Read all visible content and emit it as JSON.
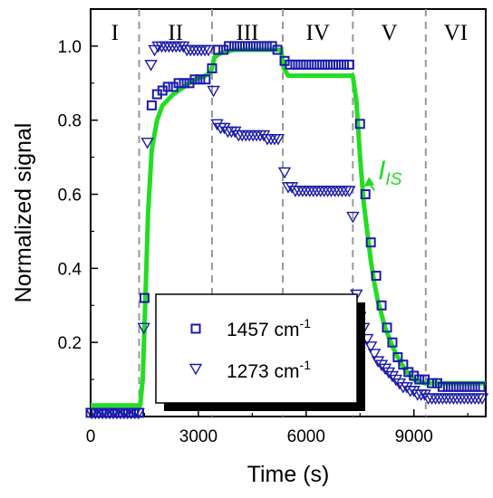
{
  "chart_data": {
    "type": "scatter",
    "xlabel": "Time (s)",
    "ylabel": "Normalized signal",
    "xlim": [
      0,
      11000
    ],
    "ylim": [
      0,
      1.1
    ],
    "xticks": [
      0,
      3000,
      6000,
      9000
    ],
    "yticks": [
      0.2,
      0.4,
      0.6,
      0.8,
      1.0
    ],
    "xtick_labels": [
      "0",
      "3000",
      "6000",
      "9000"
    ],
    "ytick_labels": [
      "0.2",
      "0.4",
      "0.6",
      "0.8",
      "1.0"
    ],
    "grid": false,
    "regions": {
      "boundaries": [
        1350,
        3380,
        5350,
        7300,
        9330
      ],
      "labels": [
        "I",
        "II",
        "III",
        "IV",
        "V",
        "VI"
      ]
    },
    "series": [
      {
        "name": "1457 cm",
        "superscript": "-1",
        "marker": "square",
        "color": "#1a1aaa",
        "points": [
          [
            0,
            0.01
          ],
          [
            150,
            0.01
          ],
          [
            300,
            0.01
          ],
          [
            450,
            0.01
          ],
          [
            600,
            0.01
          ],
          [
            750,
            0.01
          ],
          [
            900,
            0.01
          ],
          [
            1050,
            0.01
          ],
          [
            1200,
            0.01
          ],
          [
            1350,
            0.01
          ],
          [
            1500,
            0.32
          ],
          [
            1700,
            0.84
          ],
          [
            1850,
            0.87
          ],
          [
            2000,
            0.88
          ],
          [
            2150,
            0.89
          ],
          [
            2300,
            0.89
          ],
          [
            2450,
            0.9
          ],
          [
            2600,
            0.9
          ],
          [
            2750,
            0.9
          ],
          [
            2900,
            0.91
          ],
          [
            3050,
            0.91
          ],
          [
            3200,
            0.91
          ],
          [
            3380,
            0.94
          ],
          [
            3550,
            0.99
          ],
          [
            3700,
            0.99
          ],
          [
            3850,
            1.0
          ],
          [
            4000,
            1.0
          ],
          [
            4150,
            1.0
          ],
          [
            4300,
            1.0
          ],
          [
            4450,
            1.0
          ],
          [
            4600,
            1.0
          ],
          [
            4750,
            1.0
          ],
          [
            4900,
            1.0
          ],
          [
            5050,
            1.0
          ],
          [
            5200,
            0.99
          ],
          [
            5400,
            0.96
          ],
          [
            5550,
            0.95
          ],
          [
            5700,
            0.95
          ],
          [
            5850,
            0.95
          ],
          [
            6000,
            0.95
          ],
          [
            6150,
            0.95
          ],
          [
            6300,
            0.95
          ],
          [
            6450,
            0.95
          ],
          [
            6600,
            0.95
          ],
          [
            6750,
            0.95
          ],
          [
            6900,
            0.95
          ],
          [
            7050,
            0.95
          ],
          [
            7200,
            0.95
          ],
          [
            7500,
            0.79
          ],
          [
            7650,
            0.6
          ],
          [
            7800,
            0.47
          ],
          [
            7950,
            0.38
          ],
          [
            8100,
            0.3
          ],
          [
            8250,
            0.24
          ],
          [
            8400,
            0.2
          ],
          [
            8550,
            0.16
          ],
          [
            8700,
            0.14
          ],
          [
            8850,
            0.12
          ],
          [
            9000,
            0.11
          ],
          [
            9150,
            0.1
          ],
          [
            9300,
            0.1
          ],
          [
            9500,
            0.09
          ],
          [
            9650,
            0.09
          ],
          [
            9800,
            0.08
          ],
          [
            9950,
            0.08
          ],
          [
            10100,
            0.08
          ],
          [
            10250,
            0.08
          ],
          [
            10400,
            0.08
          ],
          [
            10550,
            0.08
          ],
          [
            10700,
            0.08
          ],
          [
            10850,
            0.08
          ]
        ]
      },
      {
        "name": "1273 cm",
        "superscript": "-1",
        "marker": "triangle-down",
        "color": "#1a1aaa",
        "points": [
          [
            30,
            0.01
          ],
          [
            130,
            0.01
          ],
          [
            230,
            0.01
          ],
          [
            330,
            0.01
          ],
          [
            430,
            0.01
          ],
          [
            530,
            0.01
          ],
          [
            630,
            0.01
          ],
          [
            730,
            0.01
          ],
          [
            830,
            0.01
          ],
          [
            930,
            0.01
          ],
          [
            1030,
            0.01
          ],
          [
            1130,
            0.01
          ],
          [
            1230,
            0.01
          ],
          [
            1330,
            0.01
          ],
          [
            1480,
            0.24
          ],
          [
            1580,
            0.74
          ],
          [
            1680,
            0.95
          ],
          [
            1780,
            0.99
          ],
          [
            1880,
            1.0
          ],
          [
            1980,
            1.0
          ],
          [
            2080,
            1.0
          ],
          [
            2180,
            1.0
          ],
          [
            2280,
            1.0
          ],
          [
            2380,
            1.0
          ],
          [
            2480,
            1.0
          ],
          [
            2580,
            1.0
          ],
          [
            2680,
            0.99
          ],
          [
            2780,
            0.99
          ],
          [
            2880,
            0.99
          ],
          [
            2980,
            0.99
          ],
          [
            3080,
            0.99
          ],
          [
            3180,
            0.99
          ],
          [
            3280,
            0.99
          ],
          [
            3420,
            0.88
          ],
          [
            3520,
            0.79
          ],
          [
            3620,
            0.78
          ],
          [
            3720,
            0.78
          ],
          [
            3820,
            0.77
          ],
          [
            3920,
            0.77
          ],
          [
            4020,
            0.77
          ],
          [
            4120,
            0.76
          ],
          [
            4220,
            0.76
          ],
          [
            4320,
            0.76
          ],
          [
            4420,
            0.76
          ],
          [
            4520,
            0.76
          ],
          [
            4620,
            0.76
          ],
          [
            4720,
            0.76
          ],
          [
            4820,
            0.76
          ],
          [
            4920,
            0.75
          ],
          [
            5020,
            0.75
          ],
          [
            5120,
            0.75
          ],
          [
            5220,
            0.75
          ],
          [
            5400,
            0.66
          ],
          [
            5500,
            0.62
          ],
          [
            5600,
            0.62
          ],
          [
            5700,
            0.61
          ],
          [
            5800,
            0.61
          ],
          [
            5900,
            0.61
          ],
          [
            6000,
            0.61
          ],
          [
            6100,
            0.61
          ],
          [
            6200,
            0.61
          ],
          [
            6300,
            0.61
          ],
          [
            6400,
            0.61
          ],
          [
            6500,
            0.61
          ],
          [
            6600,
            0.61
          ],
          [
            6700,
            0.61
          ],
          [
            6800,
            0.61
          ],
          [
            6900,
            0.61
          ],
          [
            7000,
            0.61
          ],
          [
            7100,
            0.61
          ],
          [
            7200,
            0.61
          ],
          [
            7300,
            0.54
          ],
          [
            7400,
            0.33
          ],
          [
            7500,
            0.27
          ],
          [
            7600,
            0.24
          ],
          [
            7700,
            0.21
          ],
          [
            7800,
            0.19
          ],
          [
            7900,
            0.17
          ],
          [
            8000,
            0.15
          ],
          [
            8100,
            0.14
          ],
          [
            8200,
            0.13
          ],
          [
            8300,
            0.12
          ],
          [
            8400,
            0.11
          ],
          [
            8500,
            0.1
          ],
          [
            8600,
            0.09
          ],
          [
            8700,
            0.08
          ],
          [
            8800,
            0.08
          ],
          [
            8900,
            0.07
          ],
          [
            9000,
            0.07
          ],
          [
            9100,
            0.06
          ],
          [
            9200,
            0.06
          ],
          [
            9300,
            0.06
          ],
          [
            9400,
            0.05
          ],
          [
            9500,
            0.05
          ],
          [
            9600,
            0.05
          ],
          [
            9700,
            0.05
          ],
          [
            9800,
            0.05
          ],
          [
            9900,
            0.05
          ],
          [
            10000,
            0.05
          ],
          [
            10100,
            0.05
          ],
          [
            10200,
            0.05
          ],
          [
            10300,
            0.05
          ],
          [
            10400,
            0.05
          ],
          [
            10500,
            0.05
          ],
          [
            10600,
            0.05
          ],
          [
            10700,
            0.05
          ],
          [
            10800,
            0.05
          ],
          [
            10900,
            0.05
          ]
        ]
      },
      {
        "name": "I",
        "subscript": "IS",
        "type": "line",
        "color": "#22dd22",
        "points": [
          [
            0,
            0.03
          ],
          [
            500,
            0.03
          ],
          [
            1000,
            0.03
          ],
          [
            1380,
            0.03
          ],
          [
            1450,
            0.1
          ],
          [
            1520,
            0.3
          ],
          [
            1600,
            0.55
          ],
          [
            1700,
            0.72
          ],
          [
            1850,
            0.8
          ],
          [
            2000,
            0.84
          ],
          [
            2300,
            0.87
          ],
          [
            2600,
            0.89
          ],
          [
            2900,
            0.91
          ],
          [
            3200,
            0.92
          ],
          [
            3350,
            0.93
          ],
          [
            3450,
            0.97
          ],
          [
            3600,
            0.98
          ],
          [
            4000,
            0.99
          ],
          [
            4500,
            0.99
          ],
          [
            5000,
            0.99
          ],
          [
            5300,
            0.99
          ],
          [
            5380,
            0.94
          ],
          [
            5500,
            0.92
          ],
          [
            6000,
            0.92
          ],
          [
            6500,
            0.92
          ],
          [
            7000,
            0.92
          ],
          [
            7300,
            0.92
          ],
          [
            7400,
            0.85
          ],
          [
            7500,
            0.7
          ],
          [
            7600,
            0.58
          ],
          [
            7700,
            0.5
          ],
          [
            7800,
            0.42
          ],
          [
            7900,
            0.36
          ],
          [
            8000,
            0.31
          ],
          [
            8200,
            0.24
          ],
          [
            8400,
            0.19
          ],
          [
            8600,
            0.15
          ],
          [
            8800,
            0.12
          ],
          [
            9000,
            0.1
          ],
          [
            9300,
            0.09
          ],
          [
            9600,
            0.09
          ],
          [
            10000,
            0.09
          ],
          [
            10500,
            0.09
          ],
          [
            11000,
            0.09
          ]
        ]
      }
    ],
    "legend": {
      "placement": "bottom-left-center",
      "entries": [
        {
          "label": "1457 cm",
          "superscript": "-1",
          "marker": "square"
        },
        {
          "label": "1273 cm",
          "superscript": "-1",
          "marker": "triangle-down"
        }
      ]
    },
    "annotation": {
      "text": "I",
      "subscript": "IS",
      "color": "#22dd22",
      "anchor": [
        8000,
        0.64
      ],
      "arrow_to": [
        7600,
        0.62
      ]
    }
  }
}
